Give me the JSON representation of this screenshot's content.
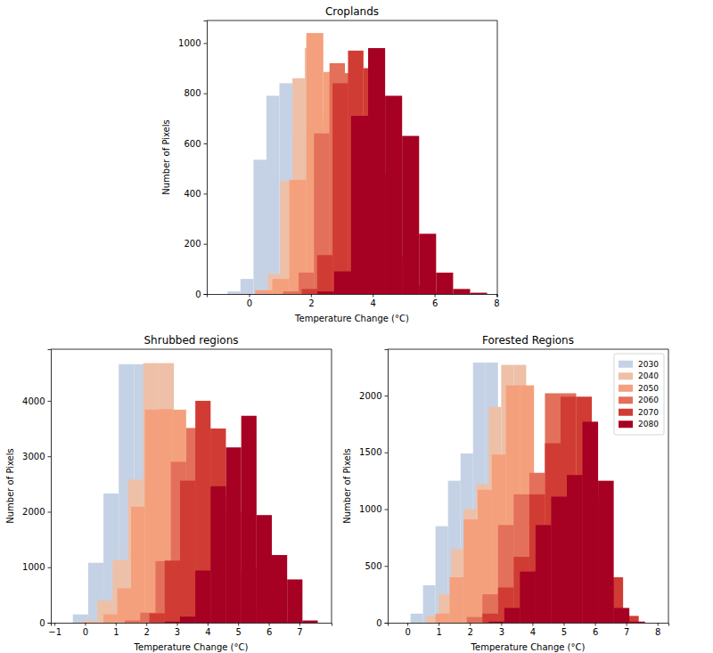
{
  "chart_data": [
    {
      "type": "histogram",
      "title": "Croplands",
      "x_label": "Temperature Change (°C)",
      "y_label": "Number of Pixels",
      "xlim": [
        -1.37,
        8.03
      ],
      "ylim": [
        0,
        1090
      ],
      "xticks": [
        0,
        2,
        4,
        6,
        8
      ],
      "yticks": [
        0,
        200,
        400,
        600,
        800,
        1000
      ],
      "series": [
        {
          "name": "2030",
          "color": "#c5d2e5",
          "bins": [
            -0.7,
            -0.28,
            0.14,
            0.56,
            0.98,
            1.4,
            1.82,
            2.24,
            2.66,
            3.08,
            3.5
          ],
          "values": [
            10,
            60,
            535,
            790,
            840,
            650,
            400,
            200,
            60,
            15
          ]
        },
        {
          "name": "2040",
          "color": "#eec0a8",
          "bins": [
            0.2,
            0.6,
            1.0,
            1.4,
            1.8,
            2.2,
            2.6,
            3.0,
            3.4,
            3.8,
            4.2
          ],
          "values": [
            15,
            80,
            450,
            860,
            980,
            700,
            330,
            110,
            30,
            5
          ]
        },
        {
          "name": "2050",
          "color": "#f4a07d",
          "bins": [
            0.2,
            0.75,
            1.3,
            1.85,
            2.4,
            2.95,
            3.5,
            4.05,
            4.6,
            5.15,
            5.7
          ],
          "values": [
            15,
            60,
            455,
            1040,
            885,
            640,
            320,
            110,
            30,
            5
          ]
        },
        {
          "name": "2060",
          "color": "#e3705a",
          "bins": [
            1.1,
            1.6,
            2.1,
            2.6,
            3.1,
            3.6,
            4.1,
            4.6,
            5.1,
            5.6,
            6.1
          ],
          "values": [
            10,
            85,
            640,
            920,
            880,
            620,
            280,
            100,
            20,
            5
          ]
        },
        {
          "name": "2070",
          "color": "#d03c33",
          "bins": [
            1.7,
            2.2,
            2.7,
            3.2,
            3.7,
            4.2,
            4.7,
            5.2,
            5.7,
            6.2,
            6.7
          ],
          "values": [
            20,
            155,
            840,
            970,
            900,
            480,
            150,
            35,
            8,
            2
          ]
        },
        {
          "name": "2080",
          "color": "#a60022",
          "bins": [
            2.2,
            2.75,
            3.3,
            3.85,
            4.4,
            4.95,
            5.5,
            6.05,
            6.6,
            7.15,
            7.7
          ],
          "values": [
            10,
            90,
            710,
            980,
            790,
            630,
            240,
            85,
            20,
            5
          ]
        }
      ]
    },
    {
      "type": "histogram",
      "title": "Shrubbed regions",
      "x_label": "Temperature Change (°C)",
      "y_label": "Number of Pixels",
      "xlim": [
        -1.12,
        8.05
      ],
      "ylim": [
        0,
        4930
      ],
      "xticks": [
        {
          "value": -1,
          "label": "−1"
        },
        0,
        1,
        2,
        3,
        4,
        5,
        6,
        7
      ],
      "yticks": [
        0,
        1000,
        2000,
        3000,
        4000
      ],
      "series": [
        {
          "name": "2030",
          "color": "#c5d2e5",
          "bins": [
            -0.4,
            0.1,
            0.6,
            1.1,
            1.6,
            2.1,
            2.6,
            3.1,
            3.6,
            4.1,
            4.6
          ],
          "values": [
            150,
            1080,
            2330,
            4660,
            4660,
            1900,
            900,
            500,
            180,
            40
          ]
        },
        {
          "name": "2040",
          "color": "#eec0a8",
          "bins": [
            -0.1,
            0.4,
            0.9,
            1.4,
            1.9,
            2.4,
            2.9,
            3.4,
            3.9,
            4.4,
            4.9
          ],
          "values": [
            40,
            400,
            1130,
            2580,
            4680,
            4680,
            2000,
            700,
            150,
            40
          ]
        },
        {
          "name": "2050",
          "color": "#f4a07d",
          "bins": [
            0.6,
            1.05,
            1.5,
            1.95,
            2.4,
            2.85,
            3.3,
            3.75,
            4.2,
            4.65,
            5.1
          ],
          "values": [
            150,
            620,
            2090,
            3840,
            3850,
            3840,
            2400,
            1100,
            400,
            60
          ]
        },
        {
          "name": "2060",
          "color": "#e3705a",
          "bins": [
            1.3,
            1.8,
            2.3,
            2.8,
            3.3,
            3.8,
            4.3,
            4.8,
            5.3,
            5.8,
            6.3
          ],
          "values": [
            40,
            180,
            1110,
            2900,
            3510,
            3500,
            2300,
            900,
            250,
            40
          ]
        },
        {
          "name": "2070",
          "color": "#d03c33",
          "bins": [
            2.1,
            2.6,
            3.1,
            3.6,
            4.1,
            4.6,
            5.1,
            5.6,
            6.1,
            6.6,
            7.1
          ],
          "values": [
            170,
            1120,
            2560,
            4000,
            3500,
            2000,
            1000,
            400,
            100,
            20
          ]
        },
        {
          "name": "2080",
          "color": "#a60022",
          "bins": [
            2.6,
            3.1,
            3.6,
            4.1,
            4.6,
            5.1,
            5.6,
            6.1,
            6.6,
            7.1,
            7.6
          ],
          "values": [
            20,
            110,
            940,
            2460,
            3160,
            3730,
            1940,
            1220,
            780,
            40
          ]
        }
      ]
    },
    {
      "type": "histogram",
      "title": "Forested Regions",
      "x_label": "Temperature Change (°C)",
      "y_label": "Number of Pixels",
      "xlim": [
        -0.63,
        8.35
      ],
      "ylim": [
        0,
        2408
      ],
      "xticks": [
        0,
        1,
        2,
        3,
        4,
        5,
        6,
        7,
        8
      ],
      "yticks": [
        0,
        500,
        1000,
        1500,
        2000
      ],
      "legend": "upper right",
      "series": [
        {
          "name": "2030",
          "color": "#c5d2e5",
          "bins": [
            0.1,
            0.5,
            0.9,
            1.3,
            1.7,
            2.1,
            2.5,
            2.9,
            3.3,
            3.7,
            4.1
          ],
          "values": [
            80,
            330,
            850,
            1250,
            1490,
            2290,
            2290,
            1200,
            500,
            100
          ]
        },
        {
          "name": "2040",
          "color": "#eec0a8",
          "bins": [
            0.6,
            1.0,
            1.4,
            1.8,
            2.2,
            2.6,
            3.0,
            3.4,
            3.8,
            4.2,
            4.6
          ],
          "values": [
            60,
            250,
            650,
            1000,
            1220,
            1900,
            2270,
            2270,
            900,
            150
          ]
        },
        {
          "name": "2050",
          "color": "#f4a07d",
          "bins": [
            0.9,
            1.35,
            1.8,
            2.25,
            2.7,
            3.15,
            3.6,
            4.05,
            4.5,
            4.95,
            5.4
          ],
          "values": [
            80,
            400,
            910,
            1170,
            1480,
            2090,
            2090,
            1100,
            500,
            120
          ]
        },
        {
          "name": "2060",
          "color": "#e3705a",
          "bins": [
            1.9,
            2.4,
            2.9,
            3.4,
            3.9,
            4.4,
            4.9,
            5.4,
            5.9,
            6.4,
            6.9
          ],
          "values": [
            50,
            250,
            860,
            1130,
            1320,
            2020,
            2020,
            1200,
            500,
            100
          ]
        },
        {
          "name": "2070",
          "color": "#d03c33",
          "bins": [
            2.4,
            2.9,
            3.4,
            3.9,
            4.4,
            4.9,
            5.4,
            5.9,
            6.4,
            6.9,
            7.4
          ],
          "values": [
            80,
            310,
            580,
            1130,
            1580,
            1990,
            1990,
            1100,
            400,
            60
          ]
        },
        {
          "name": "2080",
          "color": "#a60022",
          "bins": [
            2.6,
            3.1,
            3.6,
            4.1,
            4.6,
            5.1,
            5.6,
            6.1,
            6.6,
            7.1,
            7.6
          ],
          "values": [
            10,
            130,
            450,
            860,
            1110,
            1300,
            1770,
            1250,
            130,
            10
          ]
        }
      ]
    }
  ]
}
